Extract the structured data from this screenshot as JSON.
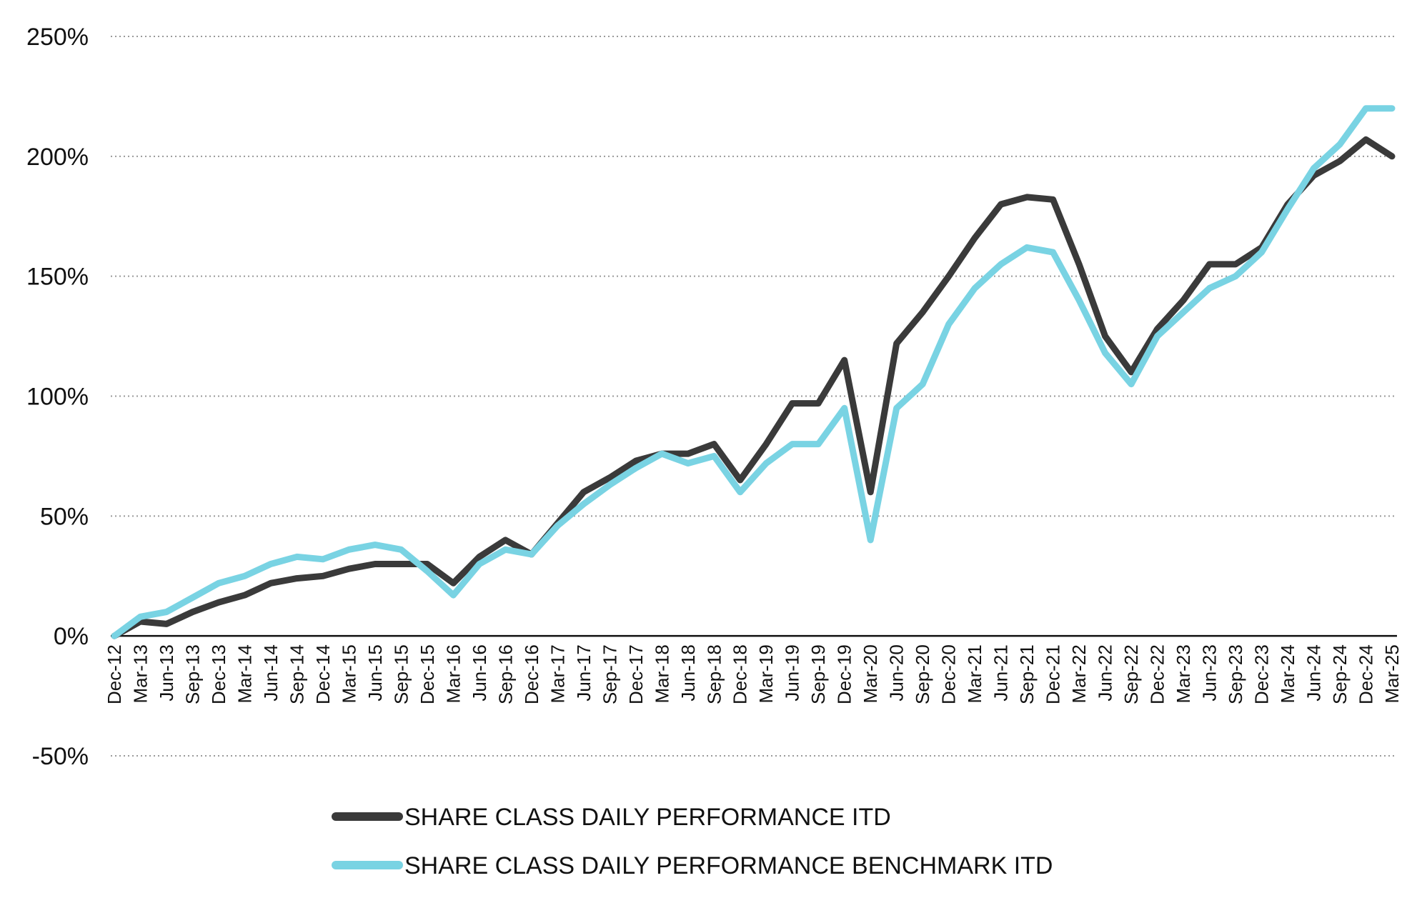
{
  "chart_data": {
    "type": "line",
    "title": "",
    "xlabel": "",
    "ylabel": "",
    "ylim": [
      -50,
      250
    ],
    "y_ticks": [
      "250%",
      "200%",
      "150%",
      "100%",
      "50%",
      "0%",
      "-50%"
    ],
    "y_tick_values": [
      250,
      200,
      150,
      100,
      50,
      0,
      -50
    ],
    "grid": true,
    "legend_position": "bottom",
    "categories": [
      "Dec-12",
      "Mar-13",
      "Jun-13",
      "Sep-13",
      "Dec-13",
      "Mar-14",
      "Jun-14",
      "Sep-14",
      "Dec-14",
      "Mar-15",
      "Jun-15",
      "Sep-15",
      "Dec-15",
      "Mar-16",
      "Jun-16",
      "Sep-16",
      "Dec-16",
      "Mar-17",
      "Jun-17",
      "Sep-17",
      "Dec-17",
      "Mar-18",
      "Jun-18",
      "Sep-18",
      "Dec-18",
      "Mar-19",
      "Jun-19",
      "Sep-19",
      "Dec-19",
      "Mar-20",
      "Jun-20",
      "Sep-20",
      "Dec-20",
      "Mar-21",
      "Jun-21",
      "Sep-21",
      "Dec-21",
      "Mar-22",
      "Jun-22",
      "Sep-22",
      "Dec-22",
      "Mar-23",
      "Jun-23",
      "Sep-23",
      "Dec-23",
      "Mar-24",
      "Jun-24",
      "Sep-24",
      "Dec-24",
      "Mar-25"
    ],
    "series": [
      {
        "name": "SHARE CLASS DAILY PERFORMANCE ITD",
        "color": "#3a3a3a",
        "values": [
          0,
          6,
          5,
          10,
          14,
          17,
          22,
          24,
          25,
          28,
          30,
          30,
          30,
          22,
          33,
          40,
          34,
          47,
          60,
          66,
          73,
          76,
          76,
          80,
          65,
          80,
          97,
          97,
          115,
          60,
          122,
          135,
          150,
          166,
          180,
          183,
          182,
          155,
          125,
          110,
          128,
          140,
          155,
          155,
          162,
          180,
          192,
          198,
          207,
          200
        ]
      },
      {
        "name": "SHARE CLASS DAILY PERFORMANCE BENCHMARK ITD",
        "color": "#79d3e3",
        "values": [
          0,
          8,
          10,
          16,
          22,
          25,
          30,
          33,
          32,
          36,
          38,
          36,
          27,
          17,
          30,
          36,
          34,
          46,
          55,
          63,
          70,
          76,
          72,
          75,
          60,
          72,
          80,
          80,
          95,
          40,
          95,
          105,
          130,
          145,
          155,
          162,
          160,
          140,
          118,
          105,
          125,
          135,
          145,
          150,
          160,
          178,
          195,
          205,
          220,
          220
        ]
      }
    ]
  }
}
